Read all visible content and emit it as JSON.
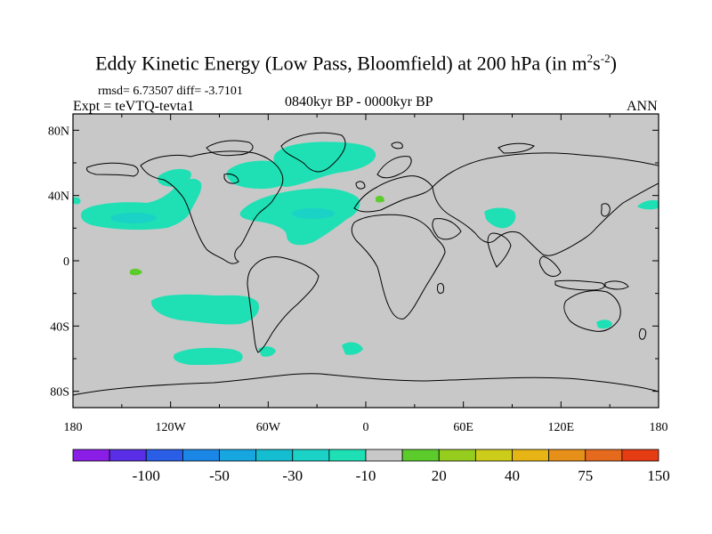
{
  "title": {
    "main": "Eddy Kinetic Energy (Low Pass, Bloomfield) at 200 hPa (in m",
    "sup1": "2",
    "mid": "s",
    "sup2": "-2",
    "end": ")"
  },
  "stats": "rmsd= 6.73507 diff= -3.7101",
  "experiment": "Expt = teVTQ-tevta1",
  "period": "0840kyr BP - 0000kyr BP",
  "season": "ANN",
  "lat_labels": [
    "80N",
    "40N",
    "0",
    "40S",
    "80S"
  ],
  "lon_labels": [
    "180",
    "120W",
    "60W",
    "0",
    "60E",
    "120E",
    "180"
  ],
  "colorbar": {
    "labels": [
      "-100",
      "-50",
      "-30",
      "-10",
      "20",
      "40",
      "75",
      "150"
    ],
    "colors": [
      "#8a1ee6",
      "#5a2ee6",
      "#2a5ee6",
      "#1a86e6",
      "#16a6e0",
      "#14bed0",
      "#1ad2c6",
      "#1ee0b4",
      "#c8c8c8",
      "#5ccc2c",
      "#96cc1e",
      "#cccc1a",
      "#e6b414",
      "#e6901a",
      "#e66a1e",
      "#e63c14"
    ]
  },
  "colors": {
    "land_fill": "#c8c8c8",
    "teal_contour": "#1ee0b4",
    "green_contour": "#5ccc2c",
    "blue_core": "#1ad2c6"
  }
}
